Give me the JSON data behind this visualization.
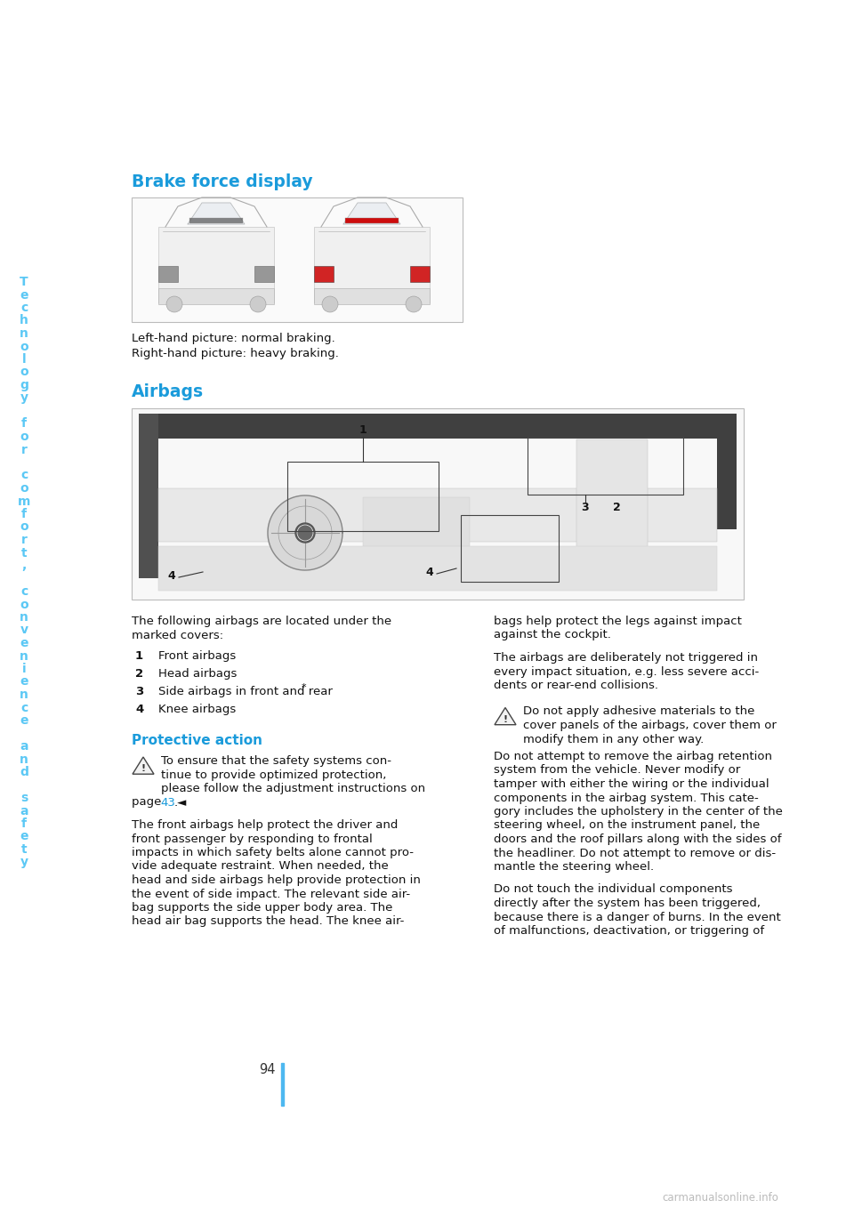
{
  "bg_color": "#ffffff",
  "sidebar_text": "Technology for comfort, convenience and safety",
  "sidebar_text_color": "#5bc8f5",
  "page_number": "94",
  "page_number_line_color": "#4db8f0",
  "section1_title": "Brake force display",
  "section1_title_color": "#1a9bdb",
  "section1_caption1": "Left-hand picture: normal braking.",
  "section1_caption2": "Right-hand picture: heavy braking.",
  "section2_title": "Airbags",
  "section2_title_color": "#1a9bdb",
  "airbag_list": [
    {
      "num": "1",
      "text": "Front airbags"
    },
    {
      "num": "2",
      "text": "Head airbags"
    },
    {
      "num": "3",
      "text": "Side airbags in front and rear",
      "star": true
    },
    {
      "num": "4",
      "text": "Knee airbags"
    }
  ],
  "subsection_title": "Protective action",
  "subsection_title_color": "#1a9bdb",
  "warn1_lines": [
    "To ensure that the safety systems con-",
    "tinue to provide optimized protection,",
    "please follow the adjustment instructions on"
  ],
  "warn1_page": "page ",
  "warn1_pagenum": "43",
  "warn1_end": ".◄",
  "col1_intro": [
    "The following airbags are located under the",
    "marked covers:"
  ],
  "col1_body": [
    "The front airbags help protect the driver and",
    "front passenger by responding to frontal",
    "impacts in which safety belts alone cannot pro-",
    "vide adequate restraint. When needed, the",
    "head and side airbags help provide protection in",
    "the event of side impact. The relevant side air-",
    "bag supports the side upper body area. The",
    "head air bag supports the head. The knee air-"
  ],
  "col2_para1": [
    "bags help protect the legs against impact",
    "against the cockpit."
  ],
  "col2_para2": [
    "The airbags are deliberately not triggered in",
    "every impact situation, e.g. less severe acci-",
    "dents or rear-end collisions."
  ],
  "warn2_lines": [
    "Do not apply adhesive materials to the",
    "cover panels of the airbags, cover them or",
    "modify them in any other way."
  ],
  "col2_para3": [
    "Do not attempt to remove the airbag retention",
    "system from the vehicle. Never modify or",
    "tamper with either the wiring or the individual",
    "components in the airbag system. This cate-",
    "gory includes the upholstery in the center of the",
    "steering wheel, on the instrument panel, the",
    "doors and the roof pillars along with the sides of",
    "the headliner. Do not attempt to remove or dis-",
    "mantle the steering wheel."
  ],
  "col2_para4": [
    "Do not touch the individual components",
    "directly after the system has been triggered,",
    "because there is a danger of burns. In the event",
    "of malfunctions, deactivation, or triggering of"
  ],
  "watermark": "carmanualsonline.info"
}
